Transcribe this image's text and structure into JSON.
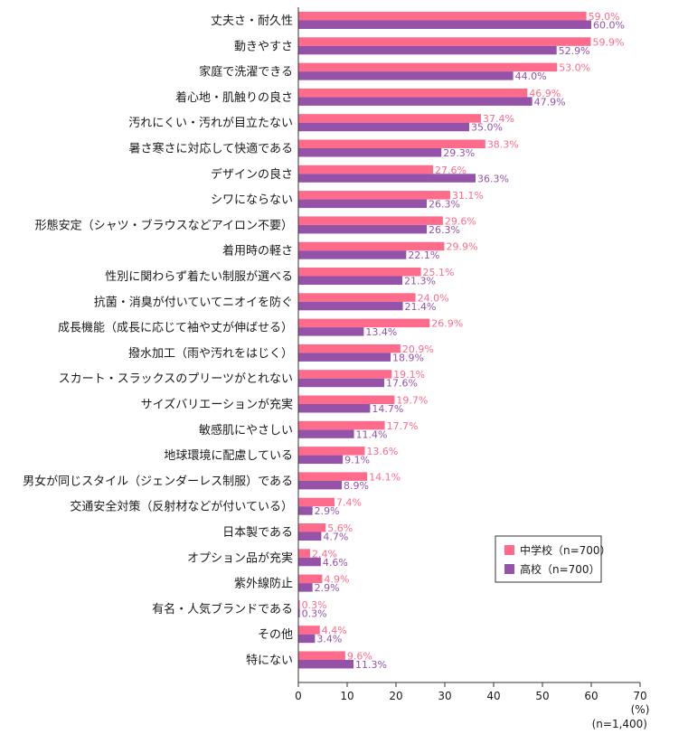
{
  "chart_data": {
    "type": "bar",
    "orientation": "horizontal",
    "categories": [
      "丈夫さ・耐久性",
      "動きやすさ",
      "家庭で洗濯できる",
      "着心地・肌触りの良さ",
      "汚れにくい・汚れが目立たない",
      "暑さ寒さに対応して快適である",
      "デザインの良さ",
      "シワにならない",
      "形態安定（シャツ・ブラウスなどアイロン不要）",
      "着用時の軽さ",
      "性別に関わらず着たい制服が選べる",
      "抗菌・消臭が付いていてニオイを防ぐ",
      "成長機能（成長に応じて袖や丈が伸ばせる）",
      "撥水加工（雨や汚れをはじく）",
      "スカート・スラックスのプリーツがとれない",
      "サイズバリエーションが充実",
      "敏感肌にやさしい",
      "地球環境に配慮している",
      "男女が同じスタイル（ジェンダーレス制服）である",
      "交通安全対策（反射材などが付いている）",
      "日本製である",
      "オプション品が充実",
      "紫外線防止",
      "有名・人気ブランドである",
      "その他",
      "特にない"
    ],
    "series": [
      {
        "name": "中学校（n=700）",
        "color": "#ff6b8a",
        "values": [
          59.0,
          59.9,
          53.0,
          46.9,
          37.4,
          38.3,
          27.6,
          31.1,
          29.6,
          29.9,
          25.1,
          24.0,
          26.9,
          20.9,
          19.1,
          19.7,
          17.7,
          13.6,
          14.1,
          7.4,
          5.6,
          2.4,
          4.9,
          0.3,
          4.4,
          9.6
        ],
        "labels": [
          "59.0%",
          "59.9%",
          "53.0%",
          "46.9%",
          "37.4%",
          "38.3%",
          "27.6%",
          "31.1%",
          "29.6%",
          "29.9%",
          "25.1%",
          "24.0%",
          "26.9%",
          "20.9%",
          "19.1%",
          "19.7%",
          "17.7%",
          "13.6%",
          "14.1%",
          "7.4%",
          "5.6%",
          "2.4%",
          "4.9%",
          "0.3%",
          "4.4%",
          "9.6%"
        ]
      },
      {
        "name": "高校（n=700）",
        "color": "#9452a8",
        "values": [
          60.0,
          52.9,
          44.0,
          47.9,
          35.0,
          29.3,
          36.3,
          26.3,
          26.3,
          22.1,
          21.3,
          21.4,
          13.4,
          18.9,
          17.6,
          14.7,
          11.4,
          9.1,
          8.9,
          2.9,
          4.7,
          4.6,
          2.9,
          0.3,
          3.4,
          11.3
        ],
        "labels": [
          "60.0%",
          "52.9%",
          "44.0%",
          "47.9%",
          "35.0%",
          "29.3%",
          "36.3%",
          "26.3%",
          "26.3%",
          "22.1%",
          "21.3%",
          "21.4%",
          "13.4%",
          "18.9%",
          "17.6%",
          "14.7%",
          "11.4%",
          "9.1%",
          "8.9%",
          "2.9%",
          "4.7%",
          "4.6%",
          "2.9%",
          "0.3%",
          "3.4%",
          "11.3%"
        ]
      }
    ],
    "xticks": [
      "0",
      "10",
      "20",
      "30",
      "40",
      "50",
      "60",
      "70"
    ],
    "xlim": [
      0,
      70
    ],
    "xunit": "(%)",
    "note": "(n=1,400)",
    "grid": false,
    "legend_position": "bottom-right"
  }
}
